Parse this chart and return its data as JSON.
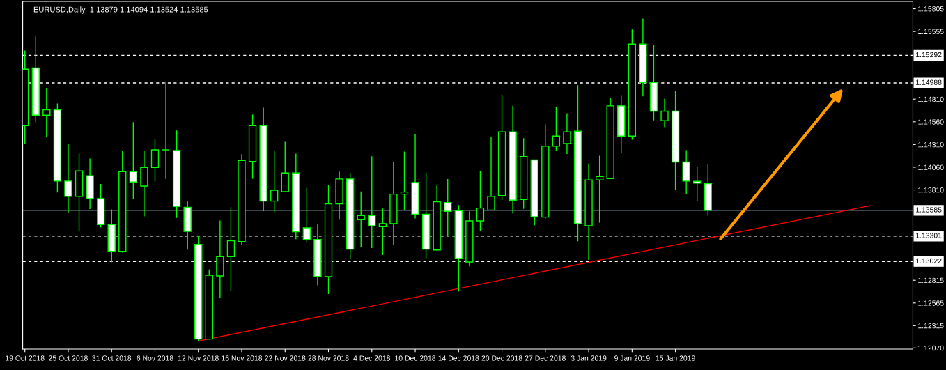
{
  "chart_data": {
    "type": "candlestick",
    "title": "EURUSD,Daily  1.13879 1.14094 1.13524 1.13585",
    "categories": [
      "19 Oct 2018",
      null,
      null,
      null,
      "25 Oct 2018",
      null,
      null,
      null,
      "31 Oct 2018",
      null,
      null,
      null,
      "6 Nov 2018",
      null,
      null,
      null,
      "12 Nov 2018",
      null,
      null,
      null,
      "16 Nov 2018",
      null,
      null,
      null,
      "22 Nov 2018",
      null,
      null,
      null,
      "28 Nov 2018",
      null,
      null,
      null,
      "4 Dec 2018",
      null,
      null,
      null,
      "10 Dec 2018",
      null,
      null,
      null,
      "14 Dec 2018",
      null,
      null,
      null,
      "20 Dec 2018",
      null,
      null,
      null,
      "27 Dec 2018",
      null,
      null,
      null,
      "3 Jan 2019",
      null,
      null,
      null,
      "9 Jan 2019",
      null,
      null,
      null,
      "15 Jan 2019",
      null,
      null,
      null,
      null,
      null,
      null,
      null,
      null,
      null,
      null,
      null,
      null,
      null,
      null,
      null,
      null,
      null,
      null,
      null,
      null,
      null
    ],
    "color": "#00ff00",
    "ohlc": [
      [
        1.14518,
        1.15345,
        1.14321,
        1.1514
      ],
      [
        1.15153,
        1.15501,
        1.14554,
        1.14633
      ],
      [
        1.14633,
        1.14935,
        1.14388,
        1.14692
      ],
      [
        1.14692,
        1.14761,
        1.13781,
        1.13907
      ],
      [
        1.13907,
        1.14321,
        1.13556,
        1.13738
      ],
      [
        1.13738,
        1.14209,
        1.13351,
        1.14019
      ],
      [
        1.13966,
        1.14155,
        1.136,
        1.13715
      ],
      [
        1.13715,
        1.13876,
        1.13398,
        1.13428
      ],
      [
        1.13428,
        1.13595,
        1.13014,
        1.13134
      ],
      [
        1.13134,
        1.14239,
        1.13119,
        1.14012
      ],
      [
        1.14012,
        1.14557,
        1.13712,
        1.13897
      ],
      [
        1.13853,
        1.14239,
        1.13518,
        1.14058
      ],
      [
        1.14058,
        1.14375,
        1.13902,
        1.14252
      ],
      [
        1.14252,
        1.14994,
        1.13932,
        1.14252
      ],
      [
        1.14244,
        1.14465,
        1.13502,
        1.13628
      ],
      [
        1.13618,
        1.13687,
        1.13152,
        1.13354
      ],
      [
        1.13211,
        1.133,
        1.12146,
        1.12167
      ],
      [
        1.12167,
        1.12934,
        1.12162,
        1.1287
      ],
      [
        1.12863,
        1.13472,
        1.12617,
        1.13075
      ],
      [
        1.13075,
        1.1362,
        1.12694,
        1.13249
      ],
      [
        1.13241,
        1.14203,
        1.13208,
        1.14134
      ],
      [
        1.14124,
        1.14641,
        1.13932,
        1.14518
      ],
      [
        1.14518,
        1.14715,
        1.13577,
        1.13687
      ],
      [
        1.13687,
        1.14239,
        1.13564,
        1.13807
      ],
      [
        1.13792,
        1.14339,
        1.13792,
        1.13996
      ],
      [
        1.13996,
        1.14209,
        1.13267,
        1.13349
      ],
      [
        1.13392,
        1.13833,
        1.13236,
        1.13264
      ],
      [
        1.13264,
        1.13431,
        1.1276,
        1.12858
      ],
      [
        1.12855,
        1.13868,
        1.12663,
        1.13656
      ],
      [
        1.13656,
        1.14012,
        1.13482,
        1.1393
      ],
      [
        1.1393,
        1.13996,
        1.1305,
        1.13157
      ],
      [
        1.13482,
        1.13794,
        1.13185,
        1.13528
      ],
      [
        1.13528,
        1.1418,
        1.1317,
        1.13415
      ],
      [
        1.13405,
        1.13605,
        1.13093,
        1.13438
      ],
      [
        1.13438,
        1.14119,
        1.132,
        1.13763
      ],
      [
        1.13763,
        1.14232,
        1.13592,
        1.13786
      ],
      [
        1.13891,
        1.14424,
        1.13495,
        1.13543
      ],
      [
        1.13543,
        1.13999,
        1.13057,
        1.13157
      ],
      [
        1.13149,
        1.13868,
        1.13139,
        1.13679
      ],
      [
        1.13671,
        1.1393,
        1.133,
        1.13574
      ],
      [
        1.13582,
        1.13643,
        1.12691,
        1.13055
      ],
      [
        1.13016,
        1.13574,
        1.12968,
        1.13469
      ],
      [
        1.13469,
        1.14019,
        1.13359,
        1.1361
      ],
      [
        1.13589,
        1.1439,
        1.13589,
        1.13738
      ],
      [
        1.13748,
        1.14859,
        1.13699,
        1.14449
      ],
      [
        1.14449,
        1.14736,
        1.13551,
        1.13697
      ],
      [
        1.13705,
        1.1438,
        1.13602,
        1.14178
      ],
      [
        1.1414,
        1.1414,
        1.13421,
        1.13515
      ],
      [
        1.1351,
        1.14531,
        1.13495,
        1.14291
      ],
      [
        1.14291,
        1.14723,
        1.14242,
        1.14403
      ],
      [
        1.14321,
        1.14654,
        1.14206,
        1.14449
      ],
      [
        1.14457,
        1.14964,
        1.13244,
        1.13438
      ],
      [
        1.13415,
        1.14101,
        1.13042,
        1.1392
      ],
      [
        1.1392,
        1.14186,
        1.13449,
        1.13958
      ],
      [
        1.13935,
        1.1482,
        1.13935,
        1.14736
      ],
      [
        1.14736,
        1.14846,
        1.14214,
        1.14403
      ],
      [
        1.14403,
        1.15578,
        1.14362,
        1.15416
      ],
      [
        1.15416,
        1.15698,
        1.14841,
        1.14994
      ],
      [
        1.14994,
        1.15404,
        1.14575,
        1.14677
      ],
      [
        1.14572,
        1.14815,
        1.145,
        1.14677
      ],
      [
        1.14677,
        1.14897,
        1.13812,
        1.14117
      ],
      [
        1.14117,
        1.14247,
        1.13766,
        1.13907
      ],
      [
        1.13904,
        1.1406,
        1.13692,
        1.13884
      ],
      [
        1.13879,
        1.14094,
        1.13524,
        1.13585
      ],
      null,
      null,
      null,
      null,
      null,
      null,
      null,
      null,
      null,
      null,
      null,
      null,
      null,
      null,
      null,
      null,
      null,
      null
    ],
    "series": [
      {
        "type": "line",
        "color": "#ff0000",
        "values": [
          null,
          null,
          null,
          null,
          null,
          null,
          null,
          null,
          null,
          null,
          null,
          null,
          null,
          null,
          null,
          null,
          1.12146,
          null,
          null,
          null,
          null,
          null,
          null,
          null,
          null,
          null,
          null,
          null,
          null,
          null,
          null,
          null,
          null,
          null,
          null,
          null,
          null,
          null,
          null,
          null,
          null,
          null,
          null,
          null,
          null,
          null,
          null,
          null,
          null,
          null,
          null,
          null,
          null,
          null,
          null,
          null,
          null,
          null,
          null,
          null,
          null,
          null,
          null,
          null,
          null,
          null,
          null,
          null,
          null,
          null,
          null,
          null,
          null,
          null,
          null,
          null,
          null,
          null,
          1.13638,
          null,
          null,
          null
        ]
      }
    ],
    "ylim": [
      1.12057,
      1.15887
    ],
    "yticks": [
      {
        "value": 1.15805,
        "label": "1.15805"
      },
      {
        "value": 1.15555,
        "label": "1.15555"
      },
      {
        "value": 1.1481,
        "label": "1.14810"
      },
      {
        "value": 1.1456,
        "label": "1.14560"
      },
      {
        "value": 1.1431,
        "label": "1.14310"
      },
      {
        "value": 1.1406,
        "label": "1.14060"
      },
      {
        "value": 1.1381,
        "label": "1.13810"
      },
      {
        "value": 1.12815,
        "label": "1.12815"
      },
      {
        "value": 1.12565,
        "label": "1.12565"
      },
      {
        "value": 1.12315,
        "label": "1.12315"
      },
      {
        "value": 1.1207,
        "label": "1.12070"
      }
    ],
    "ref_lines": [
      {
        "axis": "y",
        "value": 1.15292,
        "label": "1.15292",
        "color": "#ffffff",
        "line_style": "dashed"
      },
      {
        "axis": "y",
        "value": 1.14988,
        "label": "1.14988",
        "color": "#ffffff",
        "line_style": "dashed"
      },
      {
        "axis": "y",
        "value": 1.13585,
        "label": "1.13585",
        "color": "#778899",
        "line_style": "solid"
      },
      {
        "axis": "y",
        "value": 1.13301,
        "label": "1.13301",
        "color": "#ffffff",
        "line_style": "dashed"
      },
      {
        "axis": "y",
        "value": 1.13022,
        "label": "1.13022",
        "color": "#ffffff",
        "line_style": "dashed"
      }
    ],
    "grid": false,
    "legend": false
  }
}
